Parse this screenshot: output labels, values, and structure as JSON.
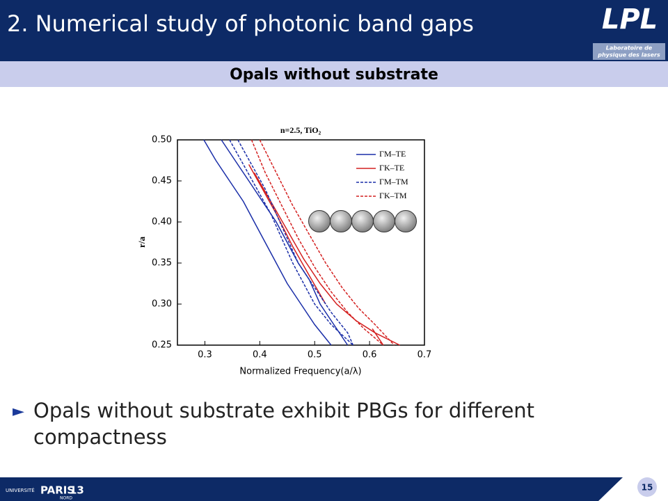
{
  "header": {
    "title": "2. Numerical study of photonic band gaps",
    "logo": "LPL",
    "logo_line1": "Laboratoire de",
    "logo_line2": "physique des lasers"
  },
  "subtitle": "Opals without substrate",
  "chart_data": {
    "type": "line",
    "title": "n=2.5, TiO₂",
    "x_label": "Normalized Frequency(a/λ)",
    "y_label": "r/a",
    "xlim": [
      0.25,
      0.7
    ],
    "xticks": [
      0.3,
      0.4,
      0.5,
      0.6,
      0.7
    ],
    "ylim": [
      0.25,
      0.5
    ],
    "yticks": [
      {
        "value": 0.25,
        "label": "0.25"
      },
      {
        "value": 0.3,
        "label": "0.30"
      },
      {
        "value": 0.35,
        "label": "0.35"
      },
      {
        "value": 0.4,
        "label": "0.40"
      },
      {
        "value": 0.45,
        "label": "0.45"
      },
      {
        "value": 0.5,
        "label": "0.50"
      }
    ],
    "legend": "upper right",
    "series": [
      {
        "name": "ΓM–TE",
        "color": "#1a2ea8",
        "dash": false,
        "x": [
          0.298,
          0.32,
          0.345,
          0.37,
          0.39,
          0.41,
          0.43,
          0.45,
          0.475,
          0.5,
          0.53,
          null,
          0.33,
          0.355,
          0.38,
          0.41,
          0.43,
          0.45,
          0.47,
          0.49,
          0.51,
          0.535,
          0.56
        ],
        "values": [
          0.5,
          0.475,
          0.45,
          0.425,
          0.4,
          0.375,
          0.35,
          0.325,
          0.3,
          0.275,
          0.25,
          null,
          0.5,
          0.475,
          0.45,
          0.42,
          0.4,
          0.375,
          0.35,
          0.33,
          0.3,
          0.275,
          0.25
        ]
      },
      {
        "name": "ΓK–TE",
        "color": "#d42020",
        "dash": false,
        "x": [
          0.38,
          0.405,
          0.43,
          0.46,
          0.49,
          0.52,
          null,
          0.605,
          0.625,
          null,
          0.39,
          0.42,
          0.45,
          0.48,
          0.51,
          0.54,
          0.575,
          0.61,
          0.655
        ],
        "values": [
          0.47,
          0.44,
          0.41,
          0.37,
          0.335,
          0.3,
          null,
          0.27,
          0.25,
          null,
          0.46,
          0.425,
          0.39,
          0.355,
          0.325,
          0.3,
          0.28,
          0.265,
          0.25
        ]
      },
      {
        "name": "ΓM–TM",
        "color": "#1a2ea8",
        "dash": true,
        "x": [
          0.345,
          0.37,
          0.395,
          0.42,
          0.44,
          0.46,
          0.48,
          0.5,
          0.53,
          0.57,
          null,
          0.36,
          0.385,
          0.41,
          0.43,
          0.45,
          0.47,
          0.5,
          0.53,
          0.56,
          0.57
        ],
        "values": [
          0.5,
          0.47,
          0.44,
          0.41,
          0.38,
          0.35,
          0.325,
          0.3,
          0.275,
          0.25,
          null,
          0.5,
          0.47,
          0.44,
          0.41,
          0.38,
          0.35,
          0.32,
          0.29,
          0.265,
          0.25
        ]
      },
      {
        "name": "ΓK–TM",
        "color": "#d42020",
        "dash": true,
        "x": [
          0.385,
          0.41,
          0.44,
          0.47,
          0.5,
          0.53,
          0.56,
          0.59,
          0.625,
          null,
          0.4,
          0.43,
          0.46,
          0.49,
          0.52,
          0.55,
          0.58,
          0.61,
          0.645
        ],
        "values": [
          0.5,
          0.46,
          0.42,
          0.38,
          0.345,
          0.315,
          0.29,
          0.27,
          0.25,
          null,
          0.5,
          0.46,
          0.42,
          0.385,
          0.35,
          0.32,
          0.295,
          0.275,
          0.25
        ]
      }
    ]
  },
  "bullet": {
    "marker": "►",
    "text_line1": "Opals without substrate  exhibit PBGs for different",
    "text_line2": "compactness"
  },
  "footer": {
    "university": "UNIVERSITÉ",
    "paris": "PARIS",
    "number": "13",
    "nord": "NORD",
    "page": "15"
  }
}
